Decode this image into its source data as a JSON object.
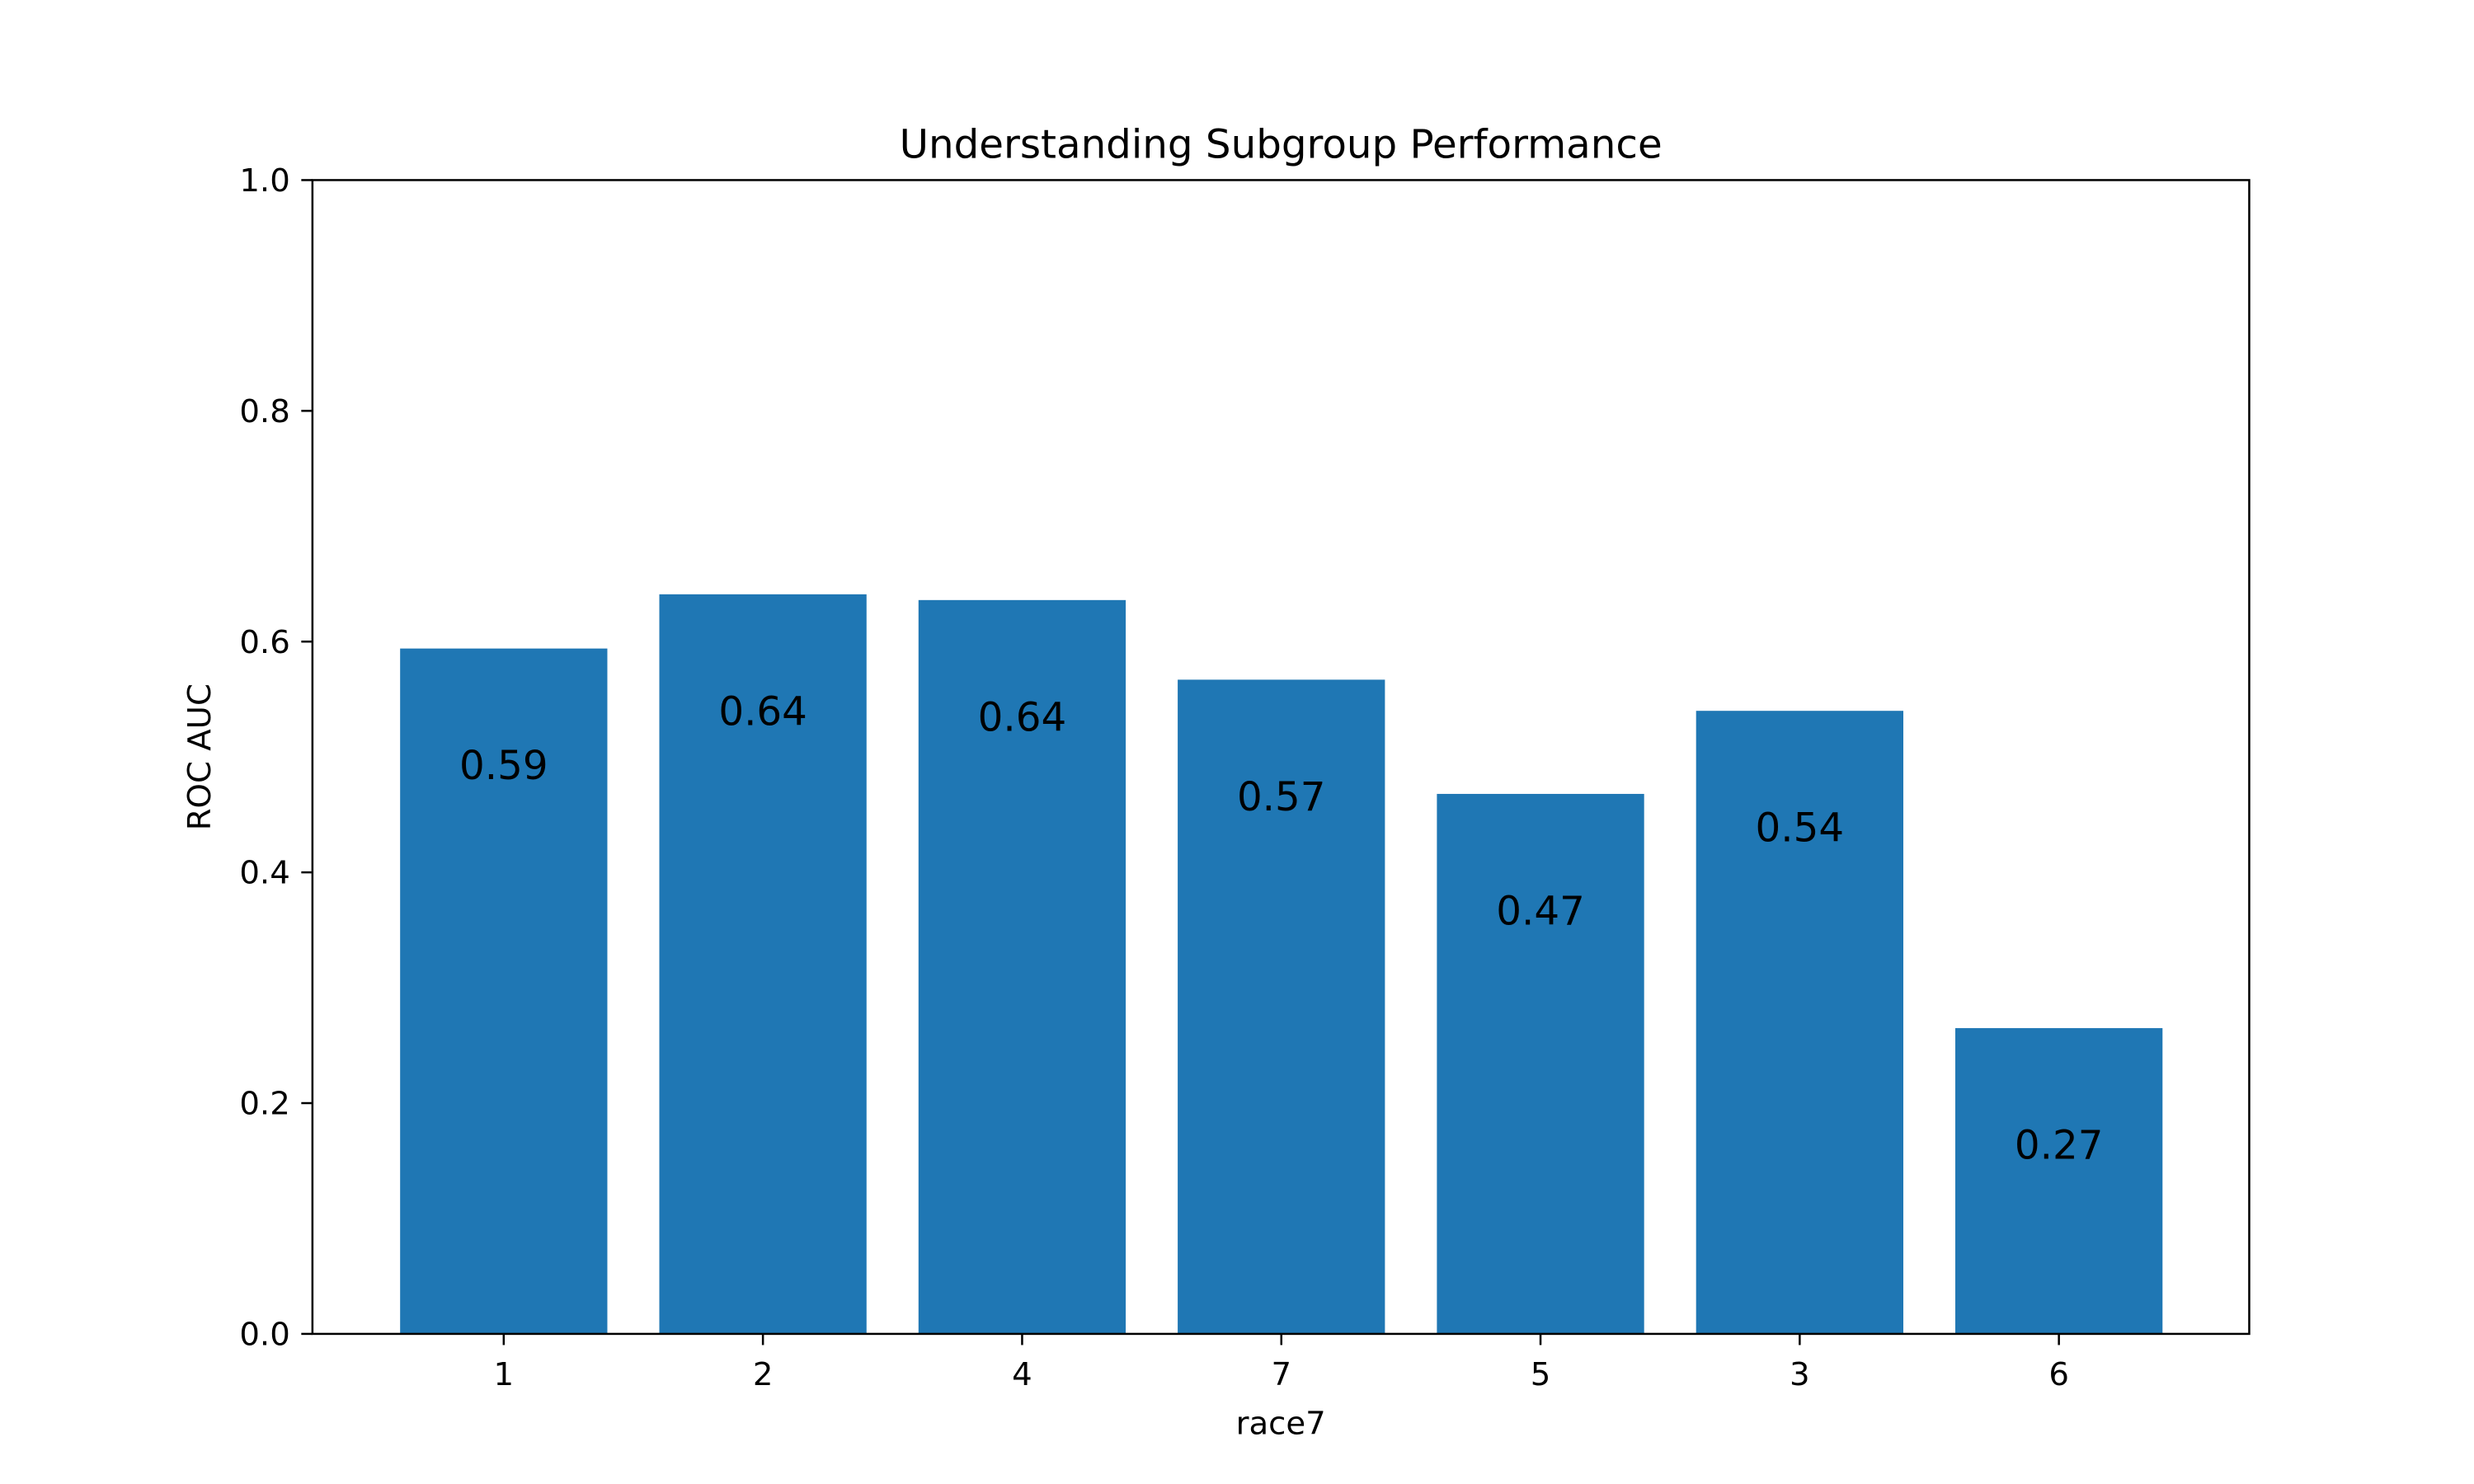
{
  "chart_data": {
    "type": "bar",
    "title": "Understanding Subgroup Performance",
    "xlabel": "race7",
    "ylabel": "ROC AUC",
    "categories": [
      "1",
      "2",
      "4",
      "7",
      "5",
      "3",
      "6"
    ],
    "values": [
      0.594,
      0.641,
      0.636,
      0.567,
      0.468,
      0.54,
      0.265
    ],
    "data_labels": [
      "0.59",
      "0.64",
      "0.64",
      "0.57",
      "0.47",
      "0.54",
      "0.27"
    ],
    "ylim": [
      0,
      1.0
    ],
    "yticks": [
      "0.0",
      "0.2",
      "0.4",
      "0.6",
      "0.8",
      "1.0"
    ],
    "grid": false,
    "bar_color": "#1f77b4"
  }
}
